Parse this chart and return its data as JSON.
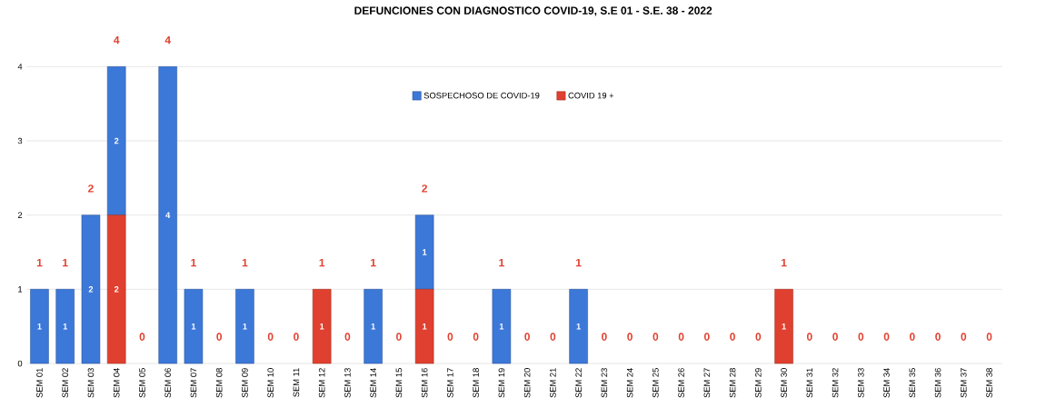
{
  "chart_data": {
    "type": "bar",
    "title": "DEFUNCIONES CON DIAGNOSTICO COVID-19, S.E 01 - S.E. 38 - 2022",
    "stacked": true,
    "legend": "top",
    "grid": "y",
    "ylim": [
      0,
      4
    ],
    "yticks": [
      0,
      1,
      2,
      3,
      4
    ],
    "categories": [
      "SEM 01",
      "SEM 02",
      "SEM 03",
      "SEM 04",
      "SEM 05",
      "SEM 06",
      "SEM 07",
      "SEM 08",
      "SEM 09",
      "SEM 10",
      "SEM 11",
      "SEM 12",
      "SEM 13",
      "SEM 14",
      "SEM 15",
      "SEM 16",
      "SEM 17",
      "SEM 18",
      "SEM 19",
      "SEM 20",
      "SEM 21",
      "SEM 22",
      "SEM 23",
      "SEM 24",
      "SEM 25",
      "SEM 26",
      "SEM 27",
      "SEM 28",
      "SEM 29",
      "SEM 30",
      "SEM 31",
      "SEM 32",
      "SEM 33",
      "SEM 34",
      "SEM 35",
      "SEM 36",
      "SEM 37",
      "SEM 38"
    ],
    "series": [
      {
        "name": "COVID 19 +",
        "color": "#e0402f",
        "values": [
          0,
          0,
          0,
          2,
          0,
          0,
          0,
          0,
          0,
          0,
          0,
          1,
          0,
          0,
          0,
          1,
          0,
          0,
          0,
          0,
          0,
          0,
          0,
          0,
          0,
          0,
          0,
          0,
          0,
          1,
          0,
          0,
          0,
          0,
          0,
          0,
          0,
          0
        ],
        "value_labels": [
          null,
          null,
          null,
          "2",
          null,
          null,
          null,
          null,
          null,
          null,
          null,
          "1",
          null,
          null,
          null,
          "1",
          null,
          null,
          null,
          null,
          null,
          null,
          null,
          null,
          null,
          null,
          null,
          null,
          null,
          "1",
          null,
          null,
          null,
          null,
          null,
          null,
          null,
          null
        ]
      },
      {
        "name": "SOSPECHOSO DE COVID-19",
        "color": "#3c78d8",
        "values": [
          1,
          1,
          2,
          2,
          0,
          4,
          1,
          0,
          1,
          0,
          0,
          0,
          0,
          1,
          0,
          1,
          0,
          0,
          1,
          0,
          0,
          1,
          0,
          0,
          0,
          0,
          0,
          0,
          0,
          0,
          0,
          0,
          0,
          0,
          0,
          0,
          0,
          0
        ],
        "value_labels": [
          "1",
          "1",
          "2",
          "2",
          null,
          "4",
          "1",
          null,
          "1",
          null,
          null,
          null,
          null,
          "1",
          null,
          "1",
          null,
          null,
          "1",
          null,
          null,
          "1",
          null,
          null,
          null,
          null,
          null,
          null,
          null,
          null,
          null,
          null,
          null,
          null,
          null,
          null,
          null,
          null
        ]
      }
    ],
    "totals": [
      "1",
      "1",
      "2",
      "4",
      "0",
      "4",
      "1",
      "0",
      "1",
      "0",
      "0",
      "1",
      "0",
      "1",
      "0",
      "2",
      "0",
      "0",
      "1",
      "0",
      "0",
      "1",
      "0",
      "0",
      "0",
      "0",
      "0",
      "0",
      "0",
      "1",
      "0",
      "0",
      "0",
      "0",
      "0",
      "0",
      "0",
      "0"
    ]
  }
}
